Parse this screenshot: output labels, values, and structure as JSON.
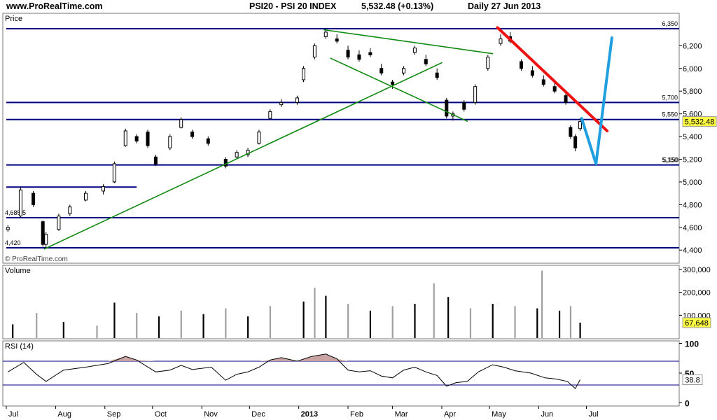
{
  "header": {
    "site": "www.ProRealTime.com",
    "title": "PSI20 - PSI 20 INDEX",
    "price": "5,532.48 (+0.13%)",
    "period": "Daily  27 Jun 2013"
  },
  "colors": {
    "candle": "#000000",
    "hline": "#000080",
    "trend_green": "#138a13",
    "trend_red": "#ee1111",
    "projection_blue": "#1f9fe0",
    "price_tag": "#ffff44",
    "rsi_fill": "#c9a3a3",
    "volume_down": "#000000",
    "volume_up": "#a0a0a0"
  },
  "chart_data": [
    {
      "type": "candlestick",
      "panel": "price",
      "title": "Price",
      "watermark": "© ProRealTime.com",
      "x_tick_labels": [
        "Jul",
        "Aug",
        "Sep",
        "Oct",
        "Nov",
        "Dec",
        "2013",
        "Feb",
        "Mar",
        "Apr",
        "May",
        "Jun",
        "Jul"
      ],
      "y_tick_labels": [
        "6,200",
        "6,000",
        "5,800",
        "5,600",
        "5,400",
        "5,200",
        "5,000",
        "4,800",
        "4,600",
        "4,400"
      ],
      "y_ticks": [
        6200,
        6000,
        5800,
        5600,
        5400,
        5200,
        5000,
        4800,
        4600,
        4400
      ],
      "ylim": [
        4350,
        6460
      ],
      "last_price_label": "5,532.48",
      "last_price": 5532.48,
      "horizontal_levels": [
        {
          "label": "6,350",
          "value": 6350,
          "x_start_day": 0
        },
        {
          "label": "5,700",
          "value": 5700,
          "x_start_day": 0
        },
        {
          "label": "5,550",
          "value": 5550,
          "x_start_day": 0
        },
        {
          "label": "5,150",
          "value": 5150,
          "x_start_day": 0
        },
        {
          "label": "",
          "value": 4955,
          "x_start_day": 0,
          "x_end_day": 82
        },
        {
          "label": "4,685.5",
          "value": 4685.5,
          "x_start_day": 0
        },
        {
          "label": "4,420",
          "value": 4420,
          "x_start_day": 0
        }
      ],
      "trendlines": [
        {
          "color": "green",
          "from": [
            "2012-07-25",
            4410
          ],
          "to": [
            "2013-04-01",
            6050
          ]
        },
        {
          "color": "green",
          "from": [
            "2013-01-17",
            6340
          ],
          "to": [
            "2013-05-03",
            6130
          ]
        },
        {
          "color": "green",
          "from": [
            "2013-01-21",
            6090
          ],
          "to": [
            "2013-04-17",
            5535
          ]
        },
        {
          "color": "red",
          "from": [
            "2013-05-06",
            6360
          ],
          "to": [
            "2013-07-14",
            5450
          ]
        },
        {
          "color": "blue",
          "from": [
            "2013-06-28",
            5560
          ],
          "to": [
            "2013-07-07",
            5160
          ]
        },
        {
          "color": "blue",
          "from": [
            "2013-07-07",
            5160
          ],
          "to": [
            "2013-07-17",
            6270
          ]
        }
      ],
      "projection_label": "5,150",
      "series": [
        {
          "date": "2012-07-02",
          "open": 4580,
          "high": 4620,
          "low": 4560,
          "close": 4600
        },
        {
          "date": "2012-07-10",
          "open": 4700,
          "high": 4960,
          "low": 4690,
          "close": 4930
        },
        {
          "date": "2012-07-18",
          "open": 4900,
          "high": 4920,
          "low": 4780,
          "close": 4800
        },
        {
          "date": "2012-07-24",
          "open": 4650,
          "high": 4660,
          "low": 4430,
          "close": 4450
        },
        {
          "date": "2012-07-26",
          "open": 4450,
          "high": 4560,
          "low": 4410,
          "close": 4540
        },
        {
          "date": "2012-08-03",
          "open": 4580,
          "high": 4720,
          "low": 4570,
          "close": 4700
        },
        {
          "date": "2012-08-10",
          "open": 4720,
          "high": 4800,
          "low": 4700,
          "close": 4780
        },
        {
          "date": "2012-08-20",
          "open": 4840,
          "high": 4920,
          "low": 4830,
          "close": 4900
        },
        {
          "date": "2012-08-31",
          "open": 4920,
          "high": 4980,
          "low": 4890,
          "close": 4960
        },
        {
          "date": "2012-09-07",
          "open": 5000,
          "high": 5180,
          "low": 4990,
          "close": 5160
        },
        {
          "date": "2012-09-14",
          "open": 5320,
          "high": 5470,
          "low": 5310,
          "close": 5450
        },
        {
          "date": "2012-09-21",
          "open": 5400,
          "high": 5420,
          "low": 5340,
          "close": 5360
        },
        {
          "date": "2012-09-28",
          "open": 5440,
          "high": 5460,
          "low": 5300,
          "close": 5320
        },
        {
          "date": "2012-10-03",
          "open": 5220,
          "high": 5240,
          "low": 5140,
          "close": 5160
        },
        {
          "date": "2012-10-12",
          "open": 5300,
          "high": 5420,
          "low": 5280,
          "close": 5400
        },
        {
          "date": "2012-10-19",
          "open": 5480,
          "high": 5570,
          "low": 5470,
          "close": 5550
        },
        {
          "date": "2012-10-26",
          "open": 5440,
          "high": 5460,
          "low": 5380,
          "close": 5400
        },
        {
          "date": "2012-11-05",
          "open": 5380,
          "high": 5400,
          "low": 5320,
          "close": 5340
        },
        {
          "date": "2012-11-16",
          "open": 5200,
          "high": 5220,
          "low": 5120,
          "close": 5140
        },
        {
          "date": "2012-11-23",
          "open": 5220,
          "high": 5280,
          "low": 5210,
          "close": 5260
        },
        {
          "date": "2012-11-30",
          "open": 5240,
          "high": 5300,
          "low": 5220,
          "close": 5280
        },
        {
          "date": "2012-12-07",
          "open": 5340,
          "high": 5460,
          "low": 5330,
          "close": 5440
        },
        {
          "date": "2012-12-14",
          "open": 5560,
          "high": 5640,
          "low": 5550,
          "close": 5620
        },
        {
          "date": "2012-12-21",
          "open": 5680,
          "high": 5730,
          "low": 5660,
          "close": 5700
        },
        {
          "date": "2012-12-31",
          "open": 5700,
          "high": 5760,
          "low": 5680,
          "close": 5740
        },
        {
          "date": "2013-01-04",
          "open": 5900,
          "high": 6020,
          "low": 5880,
          "close": 6000
        },
        {
          "date": "2013-01-11",
          "open": 6100,
          "high": 6220,
          "low": 6080,
          "close": 6200
        },
        {
          "date": "2013-01-18",
          "open": 6280,
          "high": 6350,
          "low": 6260,
          "close": 6320
        },
        {
          "date": "2013-01-25",
          "open": 6260,
          "high": 6300,
          "low": 6220,
          "close": 6240
        },
        {
          "date": "2013-02-01",
          "open": 6160,
          "high": 6200,
          "low": 6080,
          "close": 6100
        },
        {
          "date": "2013-02-08",
          "open": 6120,
          "high": 6160,
          "low": 6060,
          "close": 6080
        },
        {
          "date": "2013-02-15",
          "open": 6140,
          "high": 6180,
          "low": 6100,
          "close": 6120
        },
        {
          "date": "2013-02-22",
          "open": 6000,
          "high": 6040,
          "low": 5940,
          "close": 5960
        },
        {
          "date": "2013-03-01",
          "open": 5880,
          "high": 5900,
          "low": 5820,
          "close": 5860
        },
        {
          "date": "2013-03-08",
          "open": 5960,
          "high": 6020,
          "low": 5940,
          "close": 6000
        },
        {
          "date": "2013-03-15",
          "open": 6140,
          "high": 6200,
          "low": 6120,
          "close": 6180
        },
        {
          "date": "2013-03-22",
          "open": 6080,
          "high": 6120,
          "low": 6020,
          "close": 6040
        },
        {
          "date": "2013-03-29",
          "open": 5960,
          "high": 6000,
          "low": 5900,
          "close": 5920
        },
        {
          "date": "2013-04-04",
          "open": 5720,
          "high": 5740,
          "low": 5560,
          "close": 5580
        },
        {
          "date": "2013-04-08",
          "open": 5580,
          "high": 5620,
          "low": 5540,
          "close": 5600
        },
        {
          "date": "2013-04-15",
          "open": 5700,
          "high": 5720,
          "low": 5620,
          "close": 5640
        },
        {
          "date": "2013-04-22",
          "open": 5700,
          "high": 5860,
          "low": 5680,
          "close": 5840
        },
        {
          "date": "2013-04-30",
          "open": 6000,
          "high": 6120,
          "low": 5980,
          "close": 6100
        },
        {
          "date": "2013-05-08",
          "open": 6220,
          "high": 6300,
          "low": 6200,
          "close": 6260
        },
        {
          "date": "2013-05-14",
          "open": 6280,
          "high": 6320,
          "low": 6220,
          "close": 6240
        },
        {
          "date": "2013-05-21",
          "open": 6060,
          "high": 6080,
          "low": 5980,
          "close": 6000
        },
        {
          "date": "2013-05-28",
          "open": 5980,
          "high": 6020,
          "low": 5920,
          "close": 5940
        },
        {
          "date": "2013-06-04",
          "open": 5900,
          "high": 5940,
          "low": 5840,
          "close": 5860
        },
        {
          "date": "2013-06-11",
          "open": 5840,
          "high": 5880,
          "low": 5780,
          "close": 5800
        },
        {
          "date": "2013-06-18",
          "open": 5760,
          "high": 5800,
          "low": 5680,
          "close": 5700
        },
        {
          "date": "2013-06-21",
          "open": 5480,
          "high": 5500,
          "low": 5380,
          "close": 5400
        },
        {
          "date": "2013-06-24",
          "open": 5400,
          "high": 5420,
          "low": 5270,
          "close": 5300
        },
        {
          "date": "2013-06-27",
          "open": 5470,
          "high": 5560,
          "low": 5450,
          "close": 5532.48
        }
      ]
    },
    {
      "type": "bar",
      "panel": "volume",
      "title": "Volume",
      "y_tick_labels": [
        "300,000",
        "200,000",
        "100,000"
      ],
      "y_ticks": [
        300000,
        200000,
        100000
      ],
      "ylim": [
        0,
        320000
      ],
      "last_value_label": "67,648",
      "last_value": 67648,
      "series": [
        {
          "date": "2012-07-05",
          "value": 60000
        },
        {
          "date": "2012-07-20",
          "value": 110000
        },
        {
          "date": "2012-08-06",
          "value": 70000
        },
        {
          "date": "2012-08-27",
          "value": 55000
        },
        {
          "date": "2012-09-07",
          "value": 155000
        },
        {
          "date": "2012-09-21",
          "value": 110000
        },
        {
          "date": "2012-10-05",
          "value": 95000
        },
        {
          "date": "2012-10-19",
          "value": 120000
        },
        {
          "date": "2012-11-02",
          "value": 105000
        },
        {
          "date": "2012-11-16",
          "value": 130000
        },
        {
          "date": "2012-11-30",
          "value": 95000
        },
        {
          "date": "2012-12-14",
          "value": 140000
        },
        {
          "date": "2013-01-04",
          "value": 160000
        },
        {
          "date": "2013-01-11",
          "value": 220000
        },
        {
          "date": "2013-01-18",
          "value": 185000
        },
        {
          "date": "2013-02-01",
          "value": 150000
        },
        {
          "date": "2013-02-15",
          "value": 120000
        },
        {
          "date": "2013-03-01",
          "value": 140000
        },
        {
          "date": "2013-03-15",
          "value": 150000
        },
        {
          "date": "2013-03-27",
          "value": 240000
        },
        {
          "date": "2013-04-05",
          "value": 180000
        },
        {
          "date": "2013-04-19",
          "value": 130000
        },
        {
          "date": "2013-05-03",
          "value": 150000
        },
        {
          "date": "2013-05-17",
          "value": 140000
        },
        {
          "date": "2013-05-31",
          "value": 130000
        },
        {
          "date": "2013-06-03",
          "value": 295000
        },
        {
          "date": "2013-06-14",
          "value": 120000
        },
        {
          "date": "2013-06-21",
          "value": 140000
        },
        {
          "date": "2013-06-27",
          "value": 67648
        }
      ]
    },
    {
      "type": "line",
      "panel": "rsi",
      "title": "RSI (14)",
      "y_tick_labels": [
        "100",
        "50",
        "0"
      ],
      "y_ticks": [
        100,
        50,
        0
      ],
      "ylim": [
        0,
        100
      ],
      "levels": [
        70,
        30
      ],
      "last_value_label": "38.8",
      "last_value": 38.8,
      "series": [
        {
          "date": "2012-07-02",
          "value": 52
        },
        {
          "date": "2012-07-12",
          "value": 68
        },
        {
          "date": "2012-07-20",
          "value": 48
        },
        {
          "date": "2012-07-26",
          "value": 36
        },
        {
          "date": "2012-08-06",
          "value": 55
        },
        {
          "date": "2012-08-20",
          "value": 60
        },
        {
          "date": "2012-09-03",
          "value": 66
        },
        {
          "date": "2012-09-14",
          "value": 78
        },
        {
          "date": "2012-09-21",
          "value": 72
        },
        {
          "date": "2012-10-03",
          "value": 52
        },
        {
          "date": "2012-10-12",
          "value": 55
        },
        {
          "date": "2012-10-19",
          "value": 63
        },
        {
          "date": "2012-10-26",
          "value": 56
        },
        {
          "date": "2012-11-07",
          "value": 60
        },
        {
          "date": "2012-11-16",
          "value": 38
        },
        {
          "date": "2012-11-23",
          "value": 48
        },
        {
          "date": "2012-11-30",
          "value": 52
        },
        {
          "date": "2012-12-07",
          "value": 60
        },
        {
          "date": "2012-12-14",
          "value": 72
        },
        {
          "date": "2012-12-21",
          "value": 76
        },
        {
          "date": "2012-12-31",
          "value": 70
        },
        {
          "date": "2013-01-09",
          "value": 78
        },
        {
          "date": "2013-01-18",
          "value": 82
        },
        {
          "date": "2013-01-25",
          "value": 74
        },
        {
          "date": "2013-02-01",
          "value": 55
        },
        {
          "date": "2013-02-08",
          "value": 52
        },
        {
          "date": "2013-02-15",
          "value": 54
        },
        {
          "date": "2013-02-22",
          "value": 45
        },
        {
          "date": "2013-03-01",
          "value": 42
        },
        {
          "date": "2013-03-08",
          "value": 55
        },
        {
          "date": "2013-03-15",
          "value": 60
        },
        {
          "date": "2013-03-22",
          "value": 52
        },
        {
          "date": "2013-03-29",
          "value": 46
        },
        {
          "date": "2013-04-04",
          "value": 28
        },
        {
          "date": "2013-04-10",
          "value": 34
        },
        {
          "date": "2013-04-17",
          "value": 36
        },
        {
          "date": "2013-04-24",
          "value": 52
        },
        {
          "date": "2013-05-03",
          "value": 64
        },
        {
          "date": "2013-05-10",
          "value": 60
        },
        {
          "date": "2013-05-17",
          "value": 54
        },
        {
          "date": "2013-05-27",
          "value": 50
        },
        {
          "date": "2013-06-05",
          "value": 42
        },
        {
          "date": "2013-06-12",
          "value": 40
        },
        {
          "date": "2013-06-19",
          "value": 36
        },
        {
          "date": "2013-06-24",
          "value": 24
        },
        {
          "date": "2013-06-27",
          "value": 38.8
        }
      ]
    }
  ]
}
